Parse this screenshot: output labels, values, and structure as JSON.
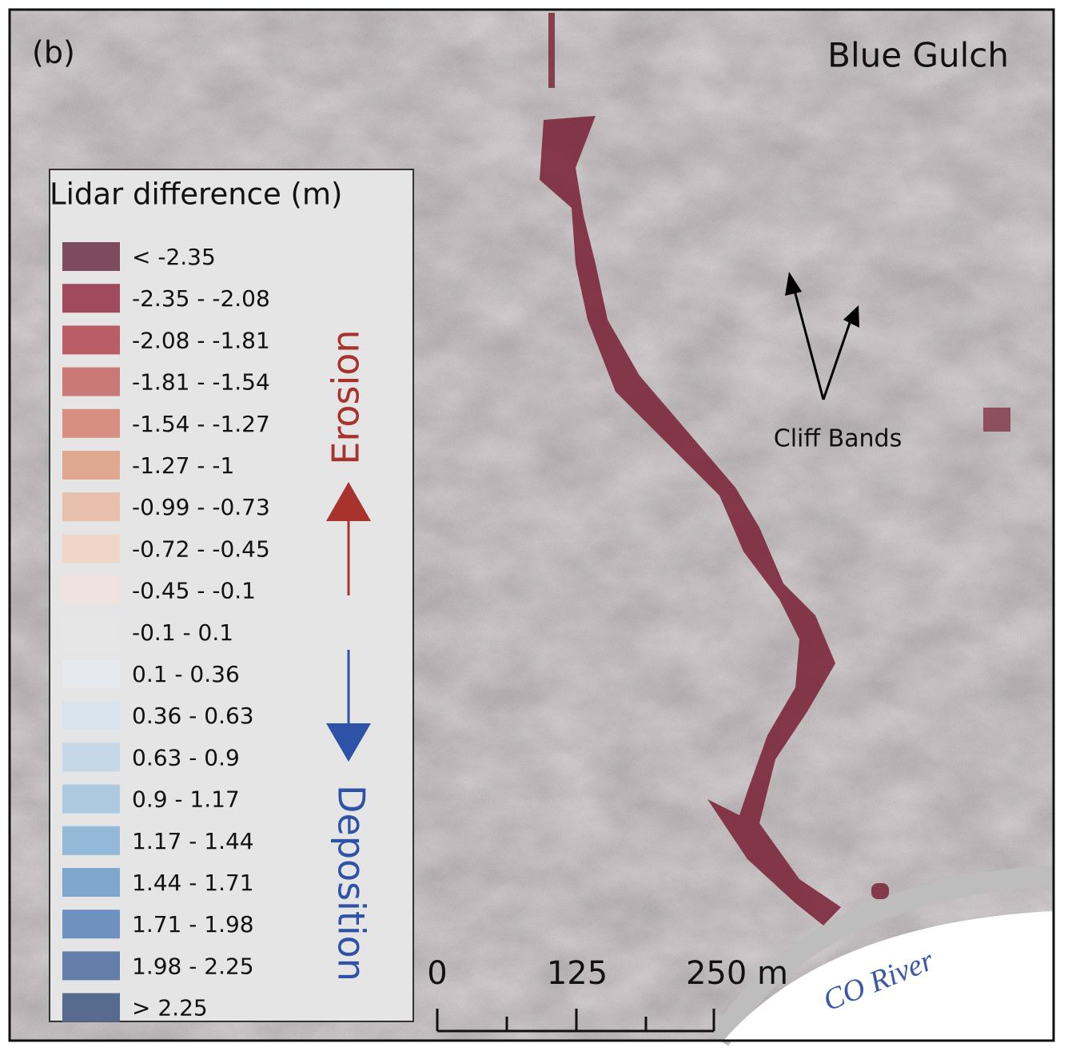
{
  "panel_label": "(b)",
  "site_name": "Blue Gulch",
  "legend": {
    "title": "Lidar difference (m)",
    "items": [
      {
        "label": "< -2.35",
        "color": "#7e4a5e"
      },
      {
        "label": "-2.35 - -2.08",
        "color": "#a14a5e"
      },
      {
        "label": "-2.08 - -1.81",
        "color": "#bb5d66"
      },
      {
        "label": "-1.81 - -1.54",
        "color": "#c97a78"
      },
      {
        "label": "-1.54 - -1.27",
        "color": "#d68f80"
      },
      {
        "label": "-1.27 - -1",
        "color": "#e0a890"
      },
      {
        "label": "-0.99 - -0.73",
        "color": "#e9c0ad"
      },
      {
        "label": "-0.72 - -0.45",
        "color": "#efd6c9"
      },
      {
        "label": "-0.45 - -0.1",
        "color": "#f0e2df"
      },
      {
        "label": "-0.1 - 0.1",
        "color": "#e6e6e6"
      },
      {
        "label": "0.1 - 0.36",
        "color": "#e6eaee"
      },
      {
        "label": "0.36 - 0.63",
        "color": "#d9e3ec"
      },
      {
        "label": "0.63 - 0.9",
        "color": "#c5d8e8"
      },
      {
        "label": "0.9 - 1.17",
        "color": "#acc9e0"
      },
      {
        "label": "1.17 - 1.44",
        "color": "#93b8d8"
      },
      {
        "label": "1.44 - 1.71",
        "color": "#7fa6cc"
      },
      {
        "label": "1.71 - 1.98",
        "color": "#6f91c0"
      },
      {
        "label": "1.98 - 2.25",
        "color": "#637ea8"
      },
      {
        "label": "> 2.25",
        "color": "#566b8e"
      }
    ]
  },
  "annotations": {
    "erosion": "Erosion",
    "deposition": "Deposition",
    "cliff_bands": "Cliff Bands",
    "river": "CO River"
  },
  "scale_bar": {
    "labels": [
      "0",
      "125",
      "250 m"
    ]
  }
}
